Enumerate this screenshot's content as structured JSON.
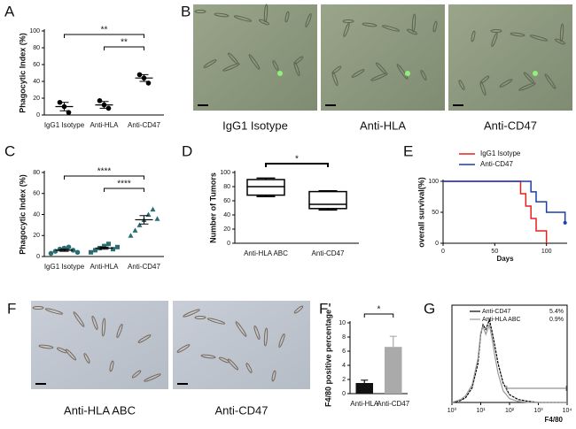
{
  "chart_data": [
    {
      "panel": "A",
      "type": "dot",
      "ylabel": "Phagocytic Index (%)",
      "categories": [
        "IgG1 Isotype",
        "Anti-HLA",
        "Anti-CD47"
      ],
      "points": [
        [
          15,
          10,
          3
        ],
        [
          17,
          12,
          8
        ],
        [
          48,
          44,
          38
        ]
      ],
      "markers": [
        "circle",
        "circle",
        "circle"
      ],
      "means": [
        10,
        12,
        44
      ],
      "errors": [
        5,
        4,
        4
      ],
      "color": "#000000",
      "ylim": [
        0,
        100
      ],
      "yticks": [
        0,
        20,
        40,
        60,
        80,
        100
      ],
      "annotations": [
        {
          "from": 0,
          "to": 2,
          "label": "**"
        },
        {
          "from": 1,
          "to": 2,
          "label": "**"
        }
      ]
    },
    {
      "panel": "C",
      "type": "dot",
      "ylabel": "Phagocytic Index (%)",
      "categories": [
        "IgG1 Isotype",
        "Anti-HLA",
        "Anti-CD47"
      ],
      "points": [
        [
          3,
          5,
          7,
          8,
          9,
          6,
          4
        ],
        [
          4,
          6,
          8,
          10,
          12,
          7,
          9
        ],
        [
          20,
          25,
          30,
          35,
          40,
          45,
          36
        ]
      ],
      "markers": [
        "circle",
        "square",
        "triangle"
      ],
      "means": [
        6,
        8,
        35
      ],
      "errors": [
        1,
        1,
        4
      ],
      "color": "#2a6e73",
      "ylim": [
        0,
        80
      ],
      "yticks": [
        0,
        20,
        40,
        60,
        80
      ],
      "annotations": [
        {
          "from": 0,
          "to": 2,
          "label": "****"
        },
        {
          "from": 1,
          "to": 2,
          "label": "****"
        }
      ]
    },
    {
      "panel": "D",
      "type": "box",
      "ylabel": "Number of Tumors",
      "categories": [
        "Anti-HLA ABC",
        "Anti-CD47"
      ],
      "min": [
        66,
        47
      ],
      "q1": [
        68,
        49
      ],
      "median": [
        80,
        55
      ],
      "q3": [
        90,
        73
      ],
      "max": [
        92,
        74
      ],
      "ylim": [
        0,
        100
      ],
      "yticks": [
        0,
        20,
        40,
        60,
        80,
        100
      ],
      "annotations": [
        {
          "from": 0,
          "to": 1,
          "label": "*"
        }
      ]
    },
    {
      "panel": "E",
      "type": "step",
      "xlabel": "Days",
      "ylabel": "overall survival(%)",
      "xlim": [
        0,
        120
      ],
      "xticks": [
        0,
        50,
        100
      ],
      "ylim": [
        0,
        100
      ],
      "yticks": [
        0,
        50,
        100
      ],
      "legend": "top",
      "series": [
        {
          "name": "IgG1 Isotype",
          "color": "#e8201c",
          "x": [
            0,
            75,
            80,
            85,
            90,
            100
          ],
          "values": [
            100,
            80,
            60,
            40,
            20,
            0
          ]
        },
        {
          "name": "Anti-CD47",
          "color": "#1a3fa8",
          "x": [
            0,
            85,
            90,
            100,
            118
          ],
          "values": [
            100,
            83,
            67,
            50,
            33
          ]
        }
      ]
    },
    {
      "panel": "F'",
      "type": "bar",
      "ylabel": "F4/80 positive percentage",
      "categories": [
        "Anti-HLA",
        "Anti-CD47"
      ],
      "values": [
        1.5,
        6.6
      ],
      "errors": [
        0.4,
        1.5
      ],
      "colors": [
        "#111111",
        "#aaaaaa"
      ],
      "ylim": [
        0,
        10
      ],
      "yticks": [
        0,
        2,
        4,
        6,
        8,
        10
      ],
      "annotations": [
        {
          "from": 0,
          "to": 1,
          "label": "*"
        }
      ]
    },
    {
      "panel": "G",
      "type": "line",
      "xlabel": "F4/80",
      "log_x": true,
      "xlim": [
        1,
        10000
      ],
      "xticks": [
        {
          "value": 1,
          "label": "10⁰"
        },
        {
          "value": 10,
          "label": "10¹"
        },
        {
          "value": 100,
          "label": "10²"
        },
        {
          "value": 1000,
          "label": "10³"
        },
        {
          "value": 10000,
          "label": "10⁴"
        }
      ],
      "ylim": [
        0,
        100
      ],
      "gate": [
        80,
        10000
      ],
      "series": [
        {
          "name": "Anti-CD47",
          "stat": "5.4%",
          "color": "#000000",
          "x": [
            1,
            2,
            3,
            5,
            8,
            10,
            12,
            15,
            20,
            25,
            30,
            40,
            60,
            100,
            200,
            500,
            1000,
            10000
          ],
          "values": [
            0,
            2,
            5,
            15,
            40,
            70,
            80,
            75,
            85,
            72,
            60,
            40,
            20,
            8,
            3,
            1,
            0,
            0
          ]
        },
        {
          "name": "Anti-HLA ABC",
          "stat": "0.9%",
          "color": "#999999",
          "x": [
            1,
            2,
            3,
            5,
            8,
            10,
            12,
            15,
            20,
            25,
            30,
            40,
            60,
            100,
            200,
            500,
            1000,
            10000
          ],
          "values": [
            0,
            3,
            7,
            18,
            45,
            72,
            78,
            70,
            80,
            65,
            50,
            30,
            12,
            4,
            1,
            0,
            0,
            0
          ]
        }
      ]
    }
  ],
  "images": [
    {
      "panel": "B",
      "labels": [
        "IgG1 Isotype",
        "Anti-HLA",
        "Anti-CD47"
      ]
    },
    {
      "panel": "F",
      "labels": [
        "Anti-HLA ABC",
        "Anti-CD47"
      ]
    }
  ]
}
